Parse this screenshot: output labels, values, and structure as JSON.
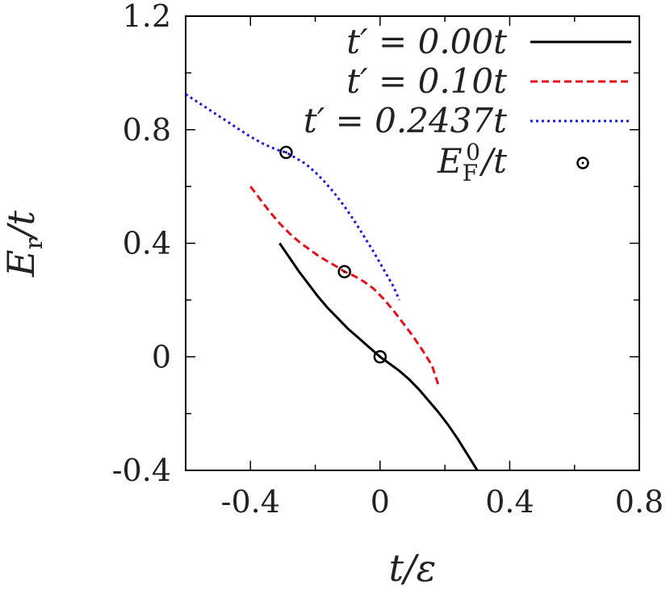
{
  "chart_data": {
    "type": "line",
    "xlabel": "t/ε",
    "ylabel": "E_r/t",
    "xlim": [
      -0.6,
      0.8
    ],
    "ylim": [
      -0.4,
      1.2
    ],
    "x_ticks": [
      -0.4,
      0,
      0.4,
      0.8
    ],
    "x_tick_labels": [
      "-0.4",
      "0",
      "0.4",
      "0.8"
    ],
    "y_ticks": [
      -0.4,
      0,
      0.4,
      0.8,
      1.2
    ],
    "y_tick_labels": [
      "-0.4",
      "0",
      "0.4",
      "0.8",
      "1.2"
    ],
    "legend_position": "top-right",
    "series": [
      {
        "name": "t′ = 0.00t",
        "color": "#000000",
        "style": "solid",
        "x": [
          -0.31,
          -0.28,
          -0.25,
          -0.22,
          -0.19,
          -0.16,
          -0.13,
          -0.1,
          -0.07,
          -0.04,
          -0.02,
          0.0,
          0.03,
          0.06,
          0.09,
          0.12,
          0.15,
          0.18,
          0.21,
          0.24,
          0.27,
          0.3
        ],
        "y": [
          0.4,
          0.35,
          0.3,
          0.255,
          0.21,
          0.17,
          0.135,
          0.1,
          0.07,
          0.04,
          0.02,
          0.0,
          -0.025,
          -0.05,
          -0.08,
          -0.115,
          -0.155,
          -0.195,
          -0.24,
          -0.29,
          -0.345,
          -0.4
        ]
      },
      {
        "name": "t′ = 0.10t",
        "color": "#e8101a",
        "style": "dashed",
        "x": [
          -0.4,
          -0.37,
          -0.34,
          -0.31,
          -0.28,
          -0.25,
          -0.22,
          -0.19,
          -0.16,
          -0.13,
          -0.11,
          -0.08,
          -0.05,
          -0.02,
          0.01,
          0.04,
          0.07,
          0.1,
          0.13,
          0.16,
          0.18
        ],
        "y": [
          0.6,
          0.555,
          0.51,
          0.47,
          0.435,
          0.405,
          0.38,
          0.355,
          0.335,
          0.315,
          0.3,
          0.285,
          0.265,
          0.24,
          0.205,
          0.165,
          0.12,
          0.075,
          0.025,
          -0.03,
          -0.1
        ]
      },
      {
        "name": "t′ = 0.2437t",
        "color": "#1a1ae8",
        "style": "dotted",
        "x": [
          -0.6,
          -0.56,
          -0.52,
          -0.48,
          -0.44,
          -0.4,
          -0.36,
          -0.32,
          -0.29,
          -0.26,
          -0.23,
          -0.2,
          -0.17,
          -0.14,
          -0.11,
          -0.08,
          -0.05,
          -0.02,
          0.01,
          0.04,
          0.06
        ],
        "y": [
          0.925,
          0.895,
          0.865,
          0.835,
          0.805,
          0.775,
          0.75,
          0.73,
          0.72,
          0.7,
          0.68,
          0.65,
          0.615,
          0.575,
          0.53,
          0.48,
          0.425,
          0.37,
          0.31,
          0.25,
          0.2
        ]
      }
    ],
    "points": {
      "name": "E_F^0/t",
      "marker": "open-circle-with-dot",
      "x": [
        -0.29,
        -0.11,
        0.0
      ],
      "y": [
        0.72,
        0.3,
        0.0
      ]
    }
  },
  "legend": {
    "entries": [
      {
        "label": "t′ = 0.00t",
        "color": "#000000",
        "style": "solid"
      },
      {
        "label": "t′ = 0.10t",
        "color": "#e8101a",
        "style": "dashed"
      },
      {
        "label": "t′ = 0.2437t",
        "color": "#1a1ae8",
        "style": "dotted"
      },
      {
        "label": "E_F^0/t",
        "color": "#000000",
        "style": "marker"
      }
    ]
  }
}
